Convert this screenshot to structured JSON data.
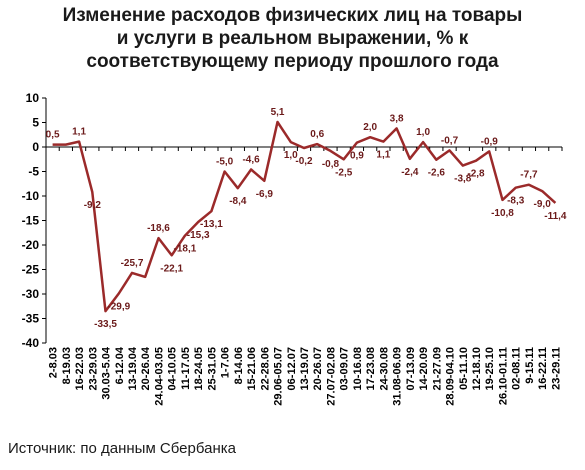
{
  "title_lines": [
    "Изменение расходов физических лиц на товары",
    "и услуги в реальном выражении, % к",
    "соответствующему периоду прошлого года"
  ],
  "source": "Источник: по данным Сбербанка",
  "colors": {
    "line": "#9b2a2a",
    "label": "#6b1a1a",
    "axis": "#000000"
  },
  "chart_data": {
    "type": "line",
    "title": "Изменение расходов физических лиц на товары и услуги в реальном выражении, % к соответствующему периоду прошлого года",
    "xlabel": "",
    "ylabel": "",
    "ylim": [
      -40,
      10
    ],
    "yticks": [
      10,
      5,
      0,
      -5,
      -10,
      -15,
      -20,
      -25,
      -30,
      -35,
      -40
    ],
    "grid": false,
    "legend": "none",
    "x": [
      "2-8.03",
      "8-19.03",
      "16-22.03",
      "23-29.03",
      "30.03-5.04",
      "6-12.04",
      "13-19.04",
      "20-26.04",
      "24.04-03.05",
      "04-10.05",
      "11-17.05",
      "18-24.05",
      "25-31.05",
      "1-7.06",
      "8-14.06",
      "15-21.06",
      "22-28.06",
      "29.06-05.07",
      "06-12.07",
      "13-19.07",
      "20-26.07",
      "27.07-02.08",
      "03-09.07",
      "10-16.08",
      "17-23.08",
      "24-30.08",
      "31.08-06.09",
      "07-13.09",
      "14-20.09",
      "21-27.09",
      "28.09-04.10",
      "05-11.10",
      "12-18.10",
      "19-25.10",
      "26.10-01.11",
      "02-08.11",
      "9-15.11",
      "16-22.11",
      "23-29.11"
    ],
    "series": [
      {
        "values": [
          0.5,
          0.5,
          1.1,
          -9.2,
          -33.5,
          -29.9,
          -25.7,
          -26.5,
          -18.6,
          -22.1,
          -18.1,
          -15.3,
          -13.1,
          -5.0,
          -8.4,
          -4.6,
          -6.9,
          5.1,
          1.0,
          -0.2,
          0.6,
          -0.8,
          -2.5,
          0.9,
          2.0,
          1.1,
          3.8,
          -2.4,
          1.0,
          -2.6,
          -0.7,
          -3.8,
          -2.8,
          -0.9,
          -10.8,
          -8.3,
          -7.7,
          -9.0,
          -11.4
        ]
      }
    ],
    "data_labels": [
      "0,5",
      "",
      "1,1",
      "-9,2",
      "-33,5",
      "-29,9",
      "-25,7",
      "",
      "-18,6",
      "-22,1",
      "-18,1",
      "-15,3",
      "-13,1",
      "-5,0",
      "-8,4",
      "-4,6",
      "-6,9",
      "5,1",
      "1,0",
      "-0,2",
      "0,6",
      "-0,8",
      "-2,5",
      "0,9",
      "2,0",
      "1,1",
      "3,8",
      "-2,4",
      "1,0",
      "-2,6",
      "-0,7",
      "-3,8",
      "-2,8",
      "-0,9",
      "-10,8",
      "-8,3",
      "-7,7",
      "-9,0",
      "-11,4"
    ],
    "ytick_labels": [
      "10",
      "5",
      "0",
      "-5",
      "-10",
      "-15",
      "-20",
      "-25",
      "-30",
      "-35",
      "-40"
    ]
  }
}
